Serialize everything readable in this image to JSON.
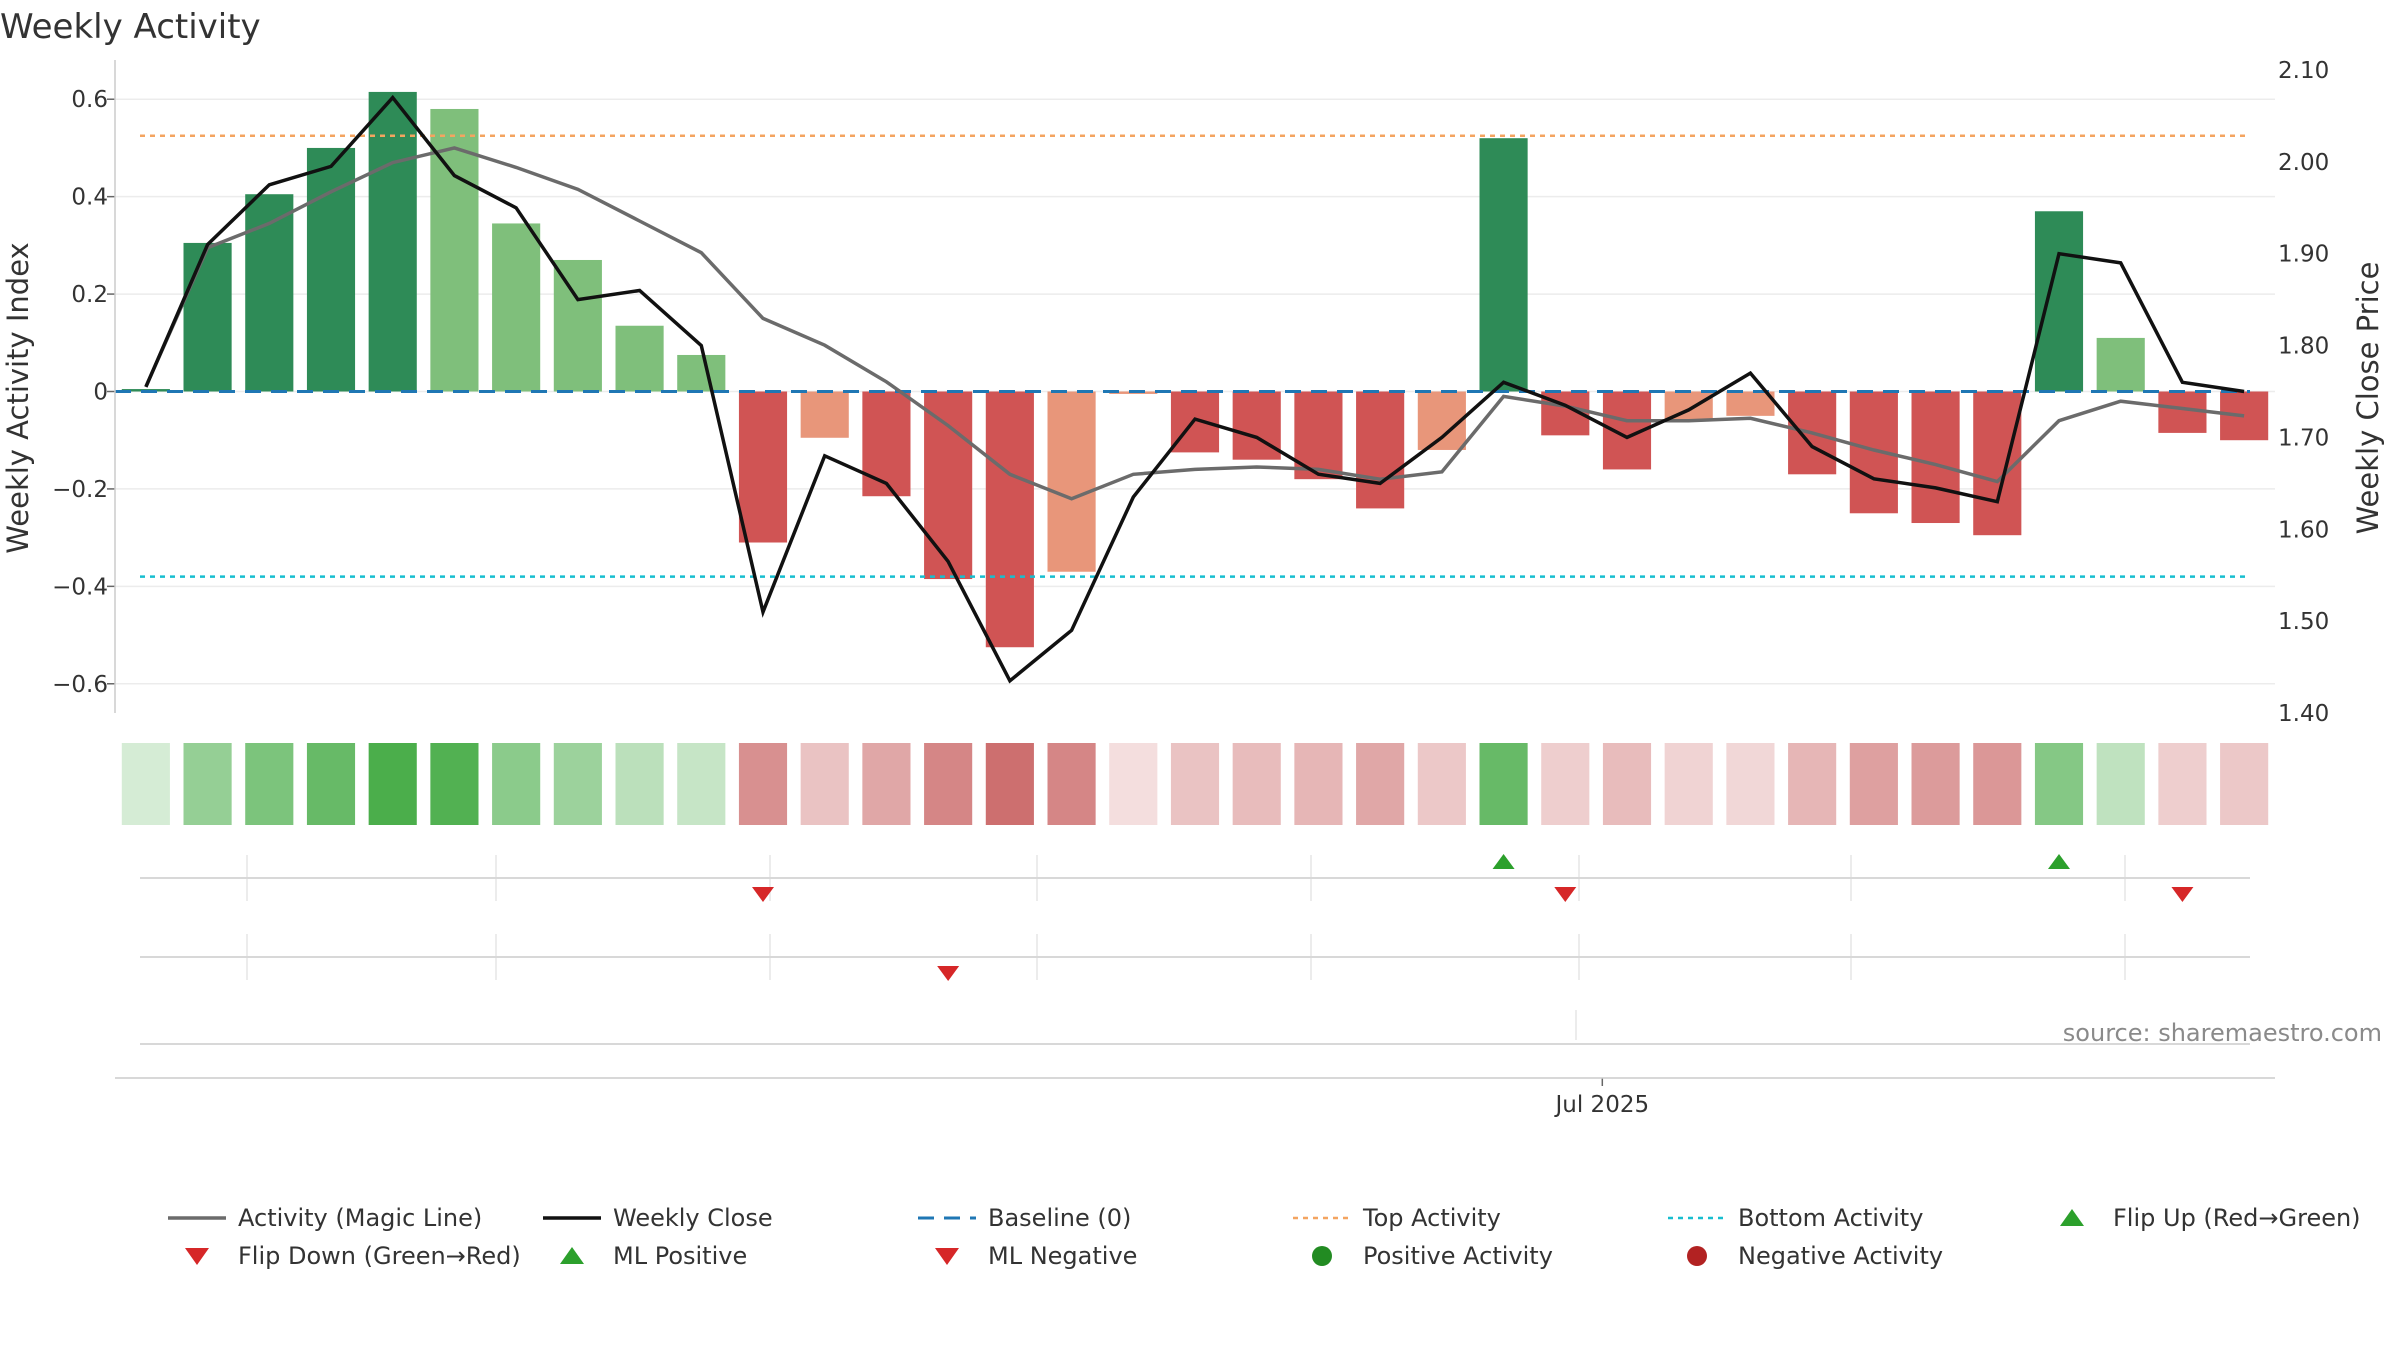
{
  "chart_data": {
    "type": "bar",
    "title": "Weekly Activity",
    "ylabel": "Weekly Activity Index",
    "y2label": "Weekly Close Price",
    "ylim": [
      -0.66,
      0.66
    ],
    "y2lim": [
      1.4,
      2.1
    ],
    "y_ticks": [
      -0.6,
      -0.4,
      -0.2,
      0,
      0.2,
      0.4,
      0.6
    ],
    "y_tick_labels": [
      "−0.6",
      "−0.4",
      "−0.2",
      "0",
      "0.2",
      "0.4",
      "0.6"
    ],
    "y2_ticks": [
      1.4,
      1.5,
      1.6,
      1.7,
      1.8,
      1.9,
      2.0,
      2.1
    ],
    "y2_tick_labels": [
      "1.40",
      "1.50",
      "1.60",
      "1.70",
      "1.80",
      "1.90",
      "2.00",
      "2.10"
    ],
    "x_tick_label": "Jul 2025",
    "x_tick_index": 23.6,
    "grid": true,
    "legend_position": "bottom",
    "source_text": "source: sharemaestro.com",
    "activity": [
      0.005,
      0.305,
      0.405,
      0.5,
      0.615,
      0.58,
      0.345,
      0.27,
      0.135,
      0.075,
      -0.31,
      -0.095,
      -0.215,
      -0.385,
      -0.525,
      -0.37,
      -0.005,
      -0.125,
      -0.14,
      -0.18,
      -0.24,
      -0.12,
      0.52,
      -0.09,
      -0.16,
      -0.06,
      -0.05,
      -0.17,
      -0.25,
      -0.27,
      -0.295,
      0.37,
      0.11,
      -0.085,
      -0.1
    ],
    "bar_colors": [
      "#2e8b57",
      "#2e8b57",
      "#2e8b57",
      "#2e8b57",
      "#2e8b57",
      "#7fbf7b",
      "#7fbf7b",
      "#7fbf7b",
      "#7fbf7b",
      "#7fbf7b",
      "#d05454",
      "#e8967a",
      "#d05454",
      "#d05454",
      "#d05454",
      "#e8967a",
      "#e8967a",
      "#d05454",
      "#d05454",
      "#d05454",
      "#d05454",
      "#e8967a",
      "#2e8b57",
      "#d05454",
      "#d05454",
      "#e8967a",
      "#e8967a",
      "#d05454",
      "#d05454",
      "#d05454",
      "#d05454",
      "#2e8b57",
      "#7fbf7b",
      "#d05454",
      "#d05454"
    ],
    "magic_line": [
      0.01,
      0.295,
      0.345,
      0.41,
      0.47,
      0.5,
      0.46,
      0.415,
      0.35,
      0.285,
      0.15,
      0.095,
      0.02,
      -0.07,
      -0.17,
      -0.22,
      -0.17,
      -0.16,
      -0.155,
      -0.16,
      -0.18,
      -0.165,
      -0.01,
      -0.03,
      -0.06,
      -0.06,
      -0.055,
      -0.085,
      -0.12,
      -0.15,
      -0.185,
      -0.06,
      -0.02,
      -0.035,
      -0.05
    ],
    "weekly_close": [
      1.755,
      1.91,
      1.975,
      1.995,
      2.07,
      1.985,
      1.95,
      1.85,
      1.86,
      1.8,
      1.51,
      1.68,
      1.65,
      1.565,
      1.435,
      1.49,
      1.635,
      1.72,
      1.7,
      1.66,
      1.65,
      1.7,
      1.76,
      1.735,
      1.7,
      1.73,
      1.77,
      1.69,
      1.655,
      1.645,
      1.63,
      1.9,
      1.89,
      1.76,
      1.75
    ],
    "top_activity": 0.525,
    "bottom_activity": -0.38,
    "heat_strip": [
      0.2,
      0.5,
      0.62,
      0.72,
      0.85,
      0.82,
      0.55,
      0.47,
      0.32,
      0.27,
      0.5,
      0.27,
      0.4,
      0.55,
      0.65,
      0.55,
      0.15,
      0.27,
      0.3,
      0.33,
      0.4,
      0.25,
      0.72,
      0.22,
      0.3,
      0.2,
      0.18,
      0.33,
      0.43,
      0.45,
      0.47,
      0.58,
      0.3,
      0.22,
      0.25
    ],
    "flip_up_indices": [
      22,
      31
    ],
    "flip_down_indices": [
      10,
      23,
      33
    ],
    "ml_negative_indices": [
      13
    ],
    "legend": [
      {
        "label": "Activity (Magic Line)",
        "marker": "solid-line",
        "color": "#6b6b6b"
      },
      {
        "label": "Weekly Close",
        "marker": "solid-line",
        "color": "#111111"
      },
      {
        "label": "Baseline (0)",
        "marker": "dashed-line",
        "color": "#1f77b4"
      },
      {
        "label": "Top Activity",
        "marker": "dotted-line",
        "color": "#f4a460"
      },
      {
        "label": "Bottom Activity",
        "marker": "dotted-line",
        "color": "#17becf"
      },
      {
        "label": "Flip Up (Red→Green)",
        "marker": "triangle-up",
        "color": "#2ca02c"
      },
      {
        "label": "Flip Down (Green→Red)",
        "marker": "triangle-down",
        "color": "#d62728"
      },
      {
        "label": "ML Positive",
        "marker": "triangle-up",
        "color": "#2ca02c"
      },
      {
        "label": "ML Negative",
        "marker": "triangle-down",
        "color": "#d62728"
      },
      {
        "label": "Positive Activity",
        "marker": "circle",
        "color": "#228b22"
      },
      {
        "label": "Negative Activity",
        "marker": "circle",
        "color": "#b22222"
      }
    ],
    "colors": {
      "positive_strong": "#2e8b57",
      "positive_weak": "#7fbf7b",
      "negative_strong": "#d05454",
      "negative_weak": "#e8967a",
      "magic_line": "#6b6b6b",
      "weekly_close": "#111111",
      "baseline": "#1f77b4",
      "top_activity": "#f4a460",
      "bottom_activity": "#17becf",
      "flip_up": "#2ca02c",
      "flip_down": "#d62728"
    }
  }
}
